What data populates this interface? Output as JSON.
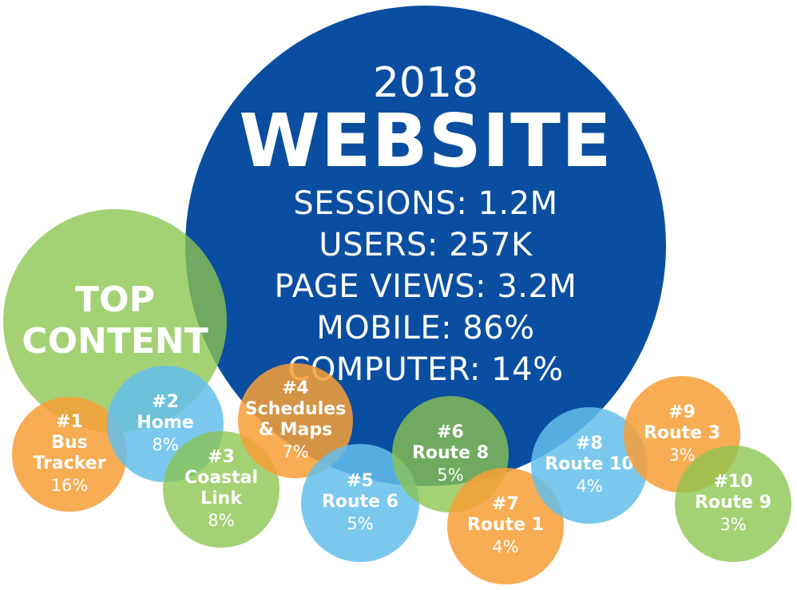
{
  "main": {
    "year": "2018",
    "title": "WEBSITE",
    "stats": [
      "SESSIONS: 1.2M",
      "USERS: 257K",
      "PAGE VIEWS: 3.2M",
      "MOBILE: 86%",
      "COMPUTER: 14%"
    ]
  },
  "top_content": {
    "line1": "TOP",
    "line2": "CONTENT"
  },
  "items": [
    {
      "rank": "#1",
      "name_lines": [
        "Bus",
        "Tracker"
      ],
      "percent": "16%",
      "color": "#f79e37"
    },
    {
      "rank": "#2",
      "name_lines": [
        "Home"
      ],
      "percent": "8%",
      "color": "#64beec"
    },
    {
      "rank": "#3",
      "name_lines": [
        "Coastal",
        "Link"
      ],
      "percent": "8%",
      "color": "#8cc44e"
    },
    {
      "rank": "#4",
      "name_lines": [
        "Schedules",
        "& Maps"
      ],
      "percent": "7%",
      "color": "#f79e37"
    },
    {
      "rank": "#5",
      "name_lines": [
        "Route 6"
      ],
      "percent": "5%",
      "color": "#64beec"
    },
    {
      "rank": "#6",
      "name_lines": [
        "Route 8"
      ],
      "percent": "5%",
      "color": "#8cc44e"
    },
    {
      "rank": "#7",
      "name_lines": [
        "Route 1"
      ],
      "percent": "4%",
      "color": "#f79e37"
    },
    {
      "rank": "#8",
      "name_lines": [
        "Route 10"
      ],
      "percent": "4%",
      "color": "#64beec"
    },
    {
      "rank": "#9",
      "name_lines": [
        "Route 3"
      ],
      "percent": "3%",
      "color": "#f79e37"
    },
    {
      "rank": "#10",
      "name_lines": [
        "Route 9"
      ],
      "percent": "3%",
      "color": "#8cc44e"
    }
  ],
  "colors": {
    "main_circle": "#0a4ea1",
    "green": "#8cc44e",
    "blue": "#64beec",
    "orange": "#f79e37"
  }
}
